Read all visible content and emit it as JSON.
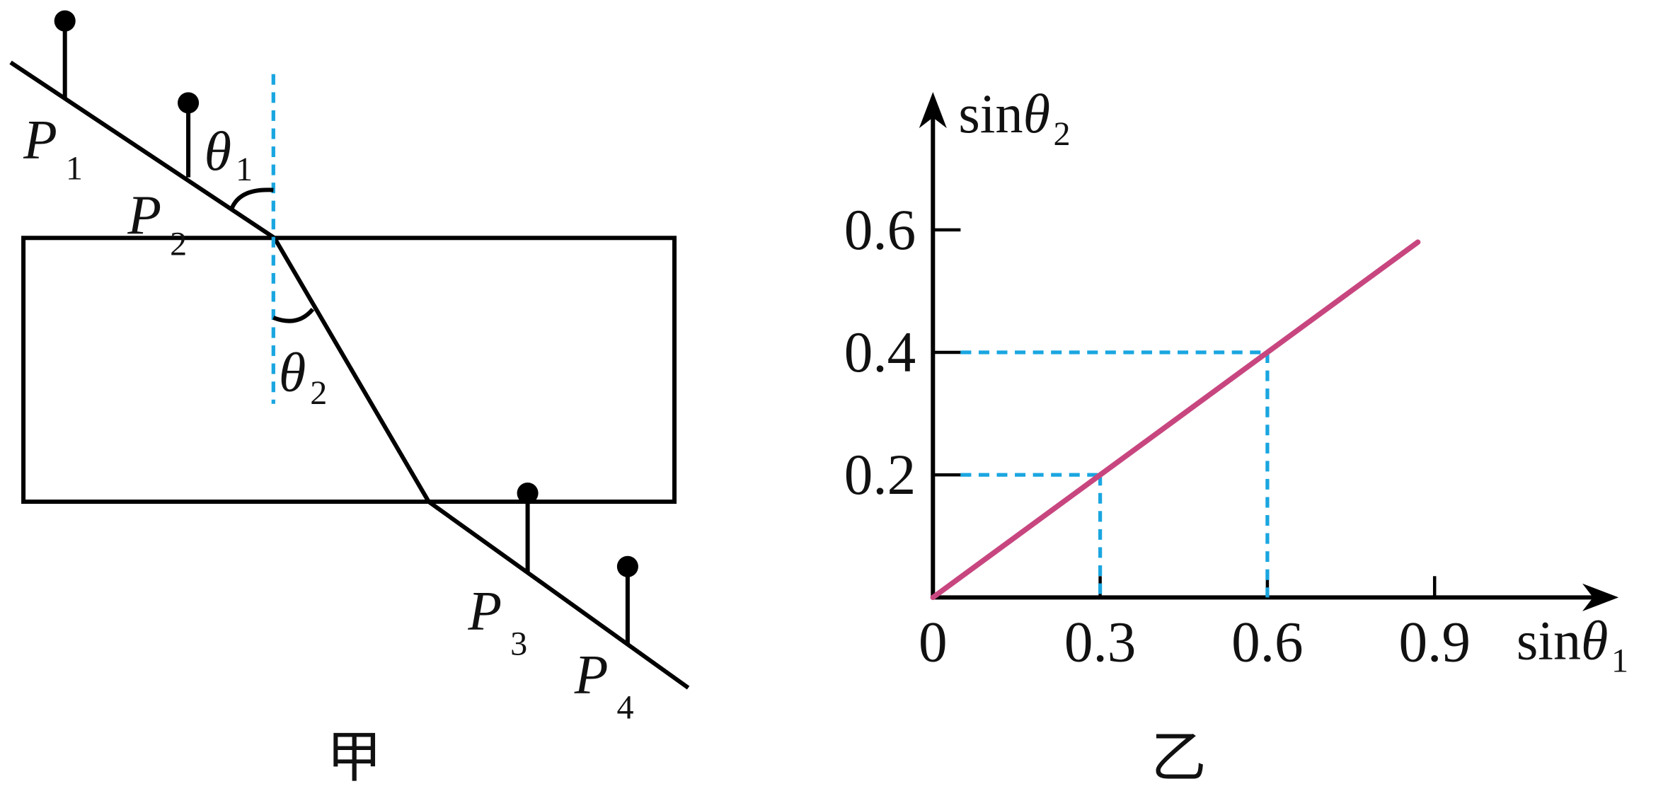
{
  "diagram": {
    "pins": [
      {
        "letter": "P",
        "sub": "1"
      },
      {
        "letter": "P",
        "sub": "2"
      },
      {
        "letter": "P",
        "sub": "3"
      },
      {
        "letter": "P",
        "sub": "4"
      }
    ],
    "angles": [
      {
        "symbol": "θ",
        "sub": "1"
      },
      {
        "symbol": "θ",
        "sub": "2"
      }
    ],
    "caption": "甲"
  },
  "chart_data": {
    "type": "line",
    "xlabel": {
      "text": "sin",
      "symbol": "θ",
      "sub": "1"
    },
    "ylabel": {
      "text": "sin",
      "symbol": "θ",
      "sub": "2"
    },
    "caption": "乙",
    "x": [
      0,
      0.3,
      0.6,
      0.87
    ],
    "series": [
      {
        "color": "#c8467f",
        "values": [
          0,
          0.2,
          0.4,
          0.58
        ]
      }
    ],
    "guides": [
      1,
      2
    ],
    "guide_color": "#1aa6e0",
    "xlim": [
      0,
      1.23
    ],
    "ylim": [
      0,
      0.825
    ],
    "xticks": [
      0,
      0.3,
      0.6,
      0.9
    ],
    "yticks": [
      0.2,
      0.4,
      0.6
    ]
  }
}
